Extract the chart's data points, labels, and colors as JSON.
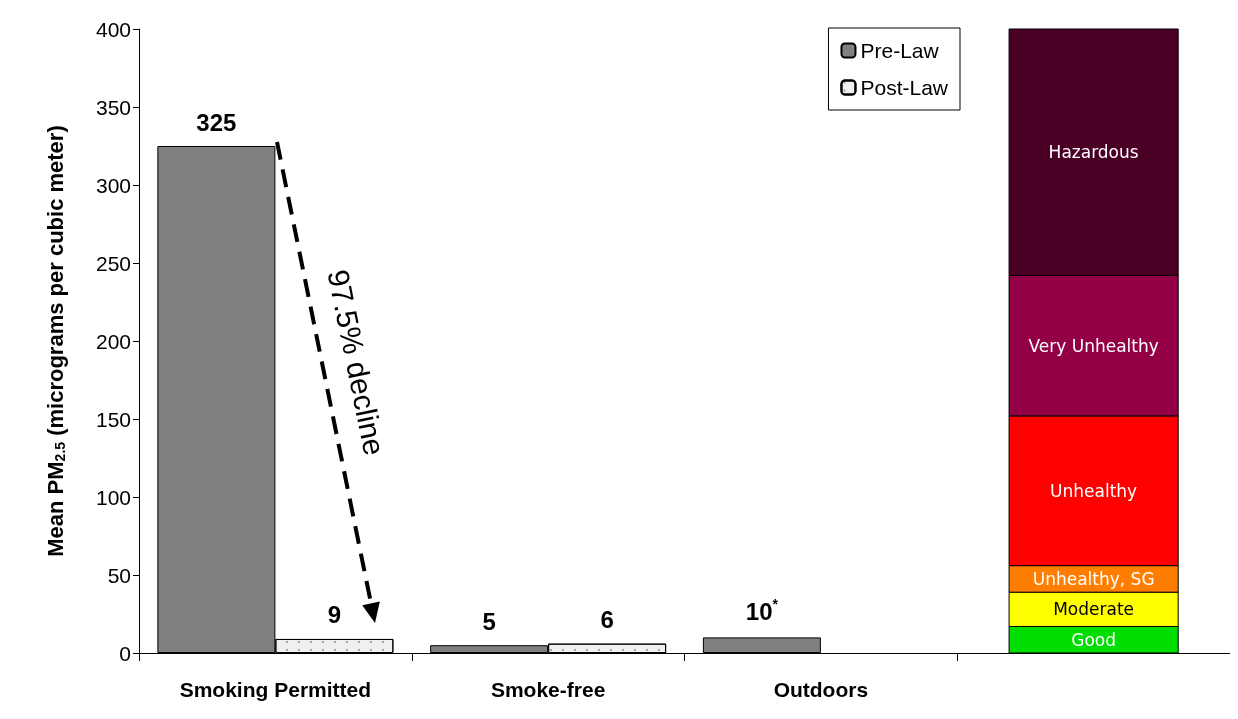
{
  "chart_data": {
    "type": "bar",
    "ylabel": "Mean PM$_{2.5}$ (micrograms per cubic meter)",
    "categories": [
      "Smoking Permitted",
      "Smoke-free",
      "Outdoors",
      null
    ],
    "series": [
      {
        "name": "Pre-Law",
        "color": "#808080",
        "values": [
          325,
          5,
          10,
          null
        ],
        "value_labels": [
          "325",
          "5",
          "10$^{*}$",
          null
        ]
      },
      {
        "name": "Post-Law",
        "color": "#f0f0f0",
        "values": [
          9,
          6,
          null,
          null
        ],
        "value_labels": [
          "9",
          "6",
          null,
          null
        ]
      }
    ],
    "bands": [
      {
        "axis": "y",
        "from": 0,
        "to": 17,
        "label": "Good",
        "color": "#00dd00"
      },
      {
        "axis": "y",
        "from": 17,
        "to": 39,
        "label": "Moderate",
        "color": "#ffff00"
      },
      {
        "axis": "y",
        "from": 39,
        "to": 56,
        "label": "Unhealthy, SG",
        "color": "#ff7e00"
      },
      {
        "axis": "y",
        "from": 56,
        "to": 152,
        "label": "Unhealthy",
        "color": "#ff0000"
      },
      {
        "axis": "y",
        "from": 152,
        "to": 242,
        "label": "Very Unhealthy",
        "color": "#930045"
      },
      {
        "axis": "y",
        "from": 242,
        "to": 400,
        "label": "Hazardous",
        "color": "#4a0024"
      }
    ],
    "ylim": [
      0,
      400
    ],
    "yticks": [
      0,
      50,
      100,
      150,
      200,
      250,
      300,
      350,
      400
    ],
    "grid": false,
    "legend": "top right",
    "annotations": [
      "97.5% decline"
    ]
  }
}
